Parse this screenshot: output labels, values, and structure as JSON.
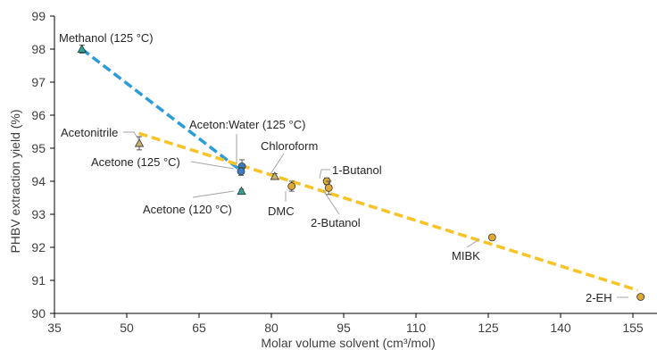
{
  "chart_data": {
    "type": "scatter",
    "title": "",
    "xlabel": "Molar volume solvent (cm³/mol)",
    "ylabel": "PHBV extraction yield (%)",
    "xlim": [
      35,
      160
    ],
    "ylim": [
      90,
      99
    ],
    "xticks": [
      35,
      50,
      65,
      80,
      95,
      110,
      125,
      140,
      155
    ],
    "yticks": [
      90,
      91,
      92,
      93,
      94,
      95,
      96,
      97,
      98,
      99
    ],
    "grid": false,
    "legend": "none",
    "colors": {
      "triangle_olive": "#c9b06a",
      "triangle_teal": "#2aa59a",
      "circle_blue": "#3b7cc4",
      "circle_gold": "#e0a830",
      "trend_blue": "#2b9cd8",
      "trend_yellow": "#f7c325"
    },
    "trendlines": [
      {
        "name": "",
        "color": "#2b9cd8",
        "x": [
          40.7,
          73.9
        ],
        "y": [
          98.0,
          94.3
        ]
      },
      {
        "name": "",
        "color": "#f7c325",
        "x": [
          52.5,
          156.0
        ],
        "y": [
          95.45,
          90.7
        ]
      }
    ],
    "points": [
      {
        "label": "Methanol (125 °C)",
        "x": 40.7,
        "y": 98.0,
        "err": 0.12,
        "marker": "triangle",
        "color": "#2aa59a"
      },
      {
        "label": "Acetonitrile",
        "x": 52.6,
        "y": 95.15,
        "err": 0.2,
        "marker": "triangle",
        "color": "#c9b06a"
      },
      {
        "label": "Aceton:Water (125 °C)",
        "x": 73.9,
        "y": 94.45,
        "err": 0.2,
        "marker": "circle",
        "color": "#3b7cc4"
      },
      {
        "label": "Acetone (125 °C)",
        "x": 73.7,
        "y": 94.3,
        "err": 0.12,
        "marker": "circle",
        "color": "#3b7cc4"
      },
      {
        "label": "Acetone (120 °C)",
        "x": 73.8,
        "y": 93.7,
        "err": 0.06,
        "marker": "triangle",
        "color": "#2aa59a"
      },
      {
        "label": "Chloroform",
        "x": 80.7,
        "y": 94.15,
        "err": 0.08,
        "marker": "triangle",
        "color": "#c9b06a"
      },
      {
        "label": "DMC",
        "x": 84.2,
        "y": 93.85,
        "err": 0.15,
        "marker": "circle",
        "color": "#e0a830"
      },
      {
        "label": "1-Butanol",
        "x": 91.5,
        "y": 94.0,
        "err": 0.1,
        "marker": "circle",
        "color": "#e0a830"
      },
      {
        "label": "2-Butanol",
        "x": 91.9,
        "y": 93.8,
        "err": 0.2,
        "marker": "circle",
        "color": "#e0a830"
      },
      {
        "label": "MIBK",
        "x": 125.8,
        "y": 92.3,
        "err": 0.06,
        "marker": "circle",
        "color": "#e0a830"
      },
      {
        "label": "2-EH",
        "x": 156.6,
        "y": 90.5,
        "err": 0.05,
        "marker": "circle",
        "color": "#e0a830"
      }
    ]
  }
}
